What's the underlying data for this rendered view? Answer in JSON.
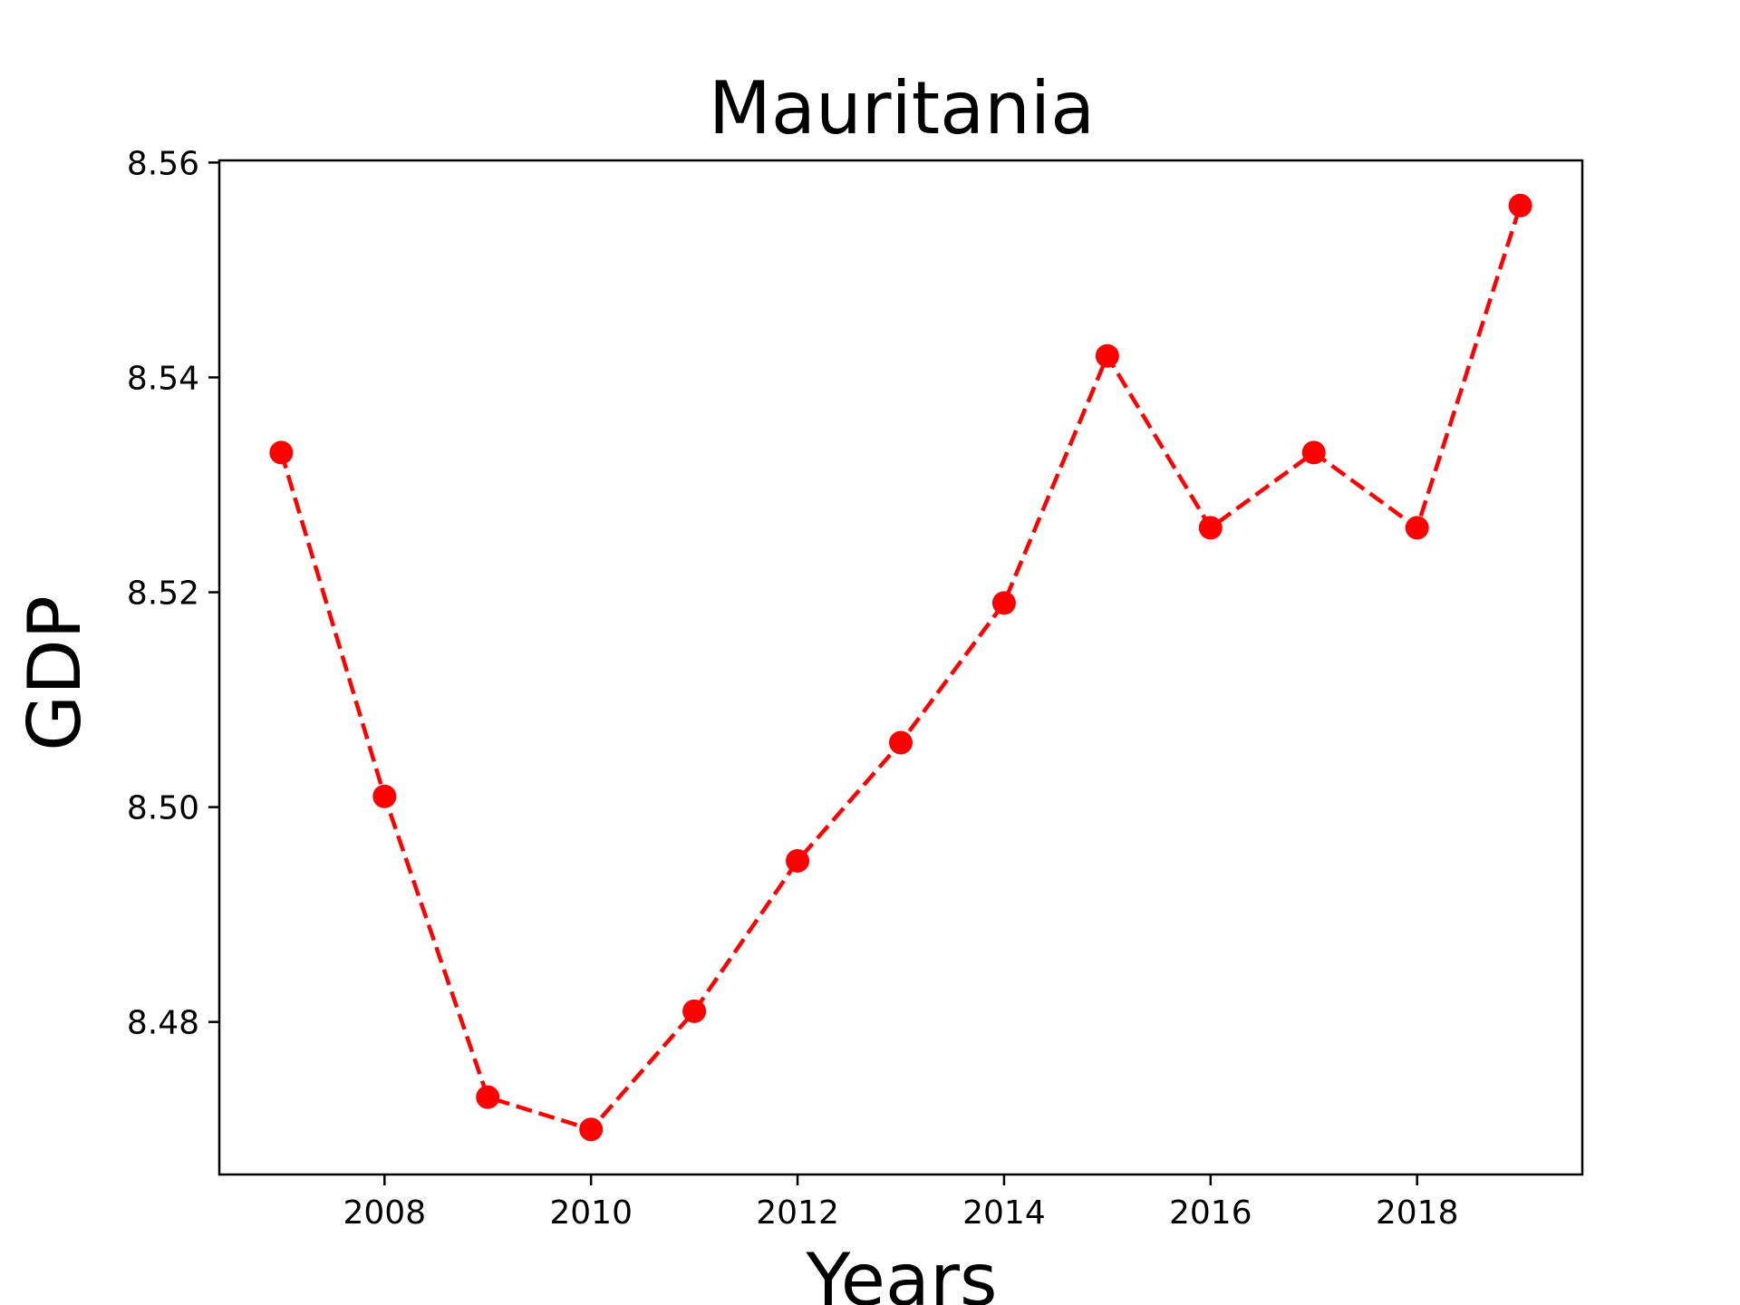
{
  "chart_data": {
    "type": "line",
    "title": "Mauritania",
    "xlabel": "Years",
    "ylabel": "GDP",
    "x": [
      2007,
      2008,
      2009,
      2010,
      2011,
      2012,
      2013,
      2014,
      2015,
      2016,
      2017,
      2018,
      2019
    ],
    "series": [
      {
        "values": [
          8.533,
          8.501,
          8.473,
          8.47,
          8.481,
          8.495,
          8.506,
          8.519,
          8.542,
          8.526,
          8.533,
          8.526,
          8.556
        ]
      }
    ],
    "xlim": [
      2006.4,
      2019.6
    ],
    "ylim": [
      8.4658,
      8.5602
    ],
    "x_ticks": [
      2008,
      2010,
      2012,
      2014,
      2016,
      2018
    ],
    "x_tick_labels": [
      "2008",
      "2010",
      "2012",
      "2014",
      "2016",
      "2018"
    ],
    "y_ticks": [
      8.48,
      8.5,
      8.52,
      8.54,
      8.56
    ],
    "y_tick_labels": [
      "8.48",
      "8.50",
      "8.52",
      "8.54",
      "8.56"
    ],
    "line_style": "dashed",
    "marker": "circle",
    "color": "#ff0000",
    "grid": false,
    "legend": "none"
  }
}
